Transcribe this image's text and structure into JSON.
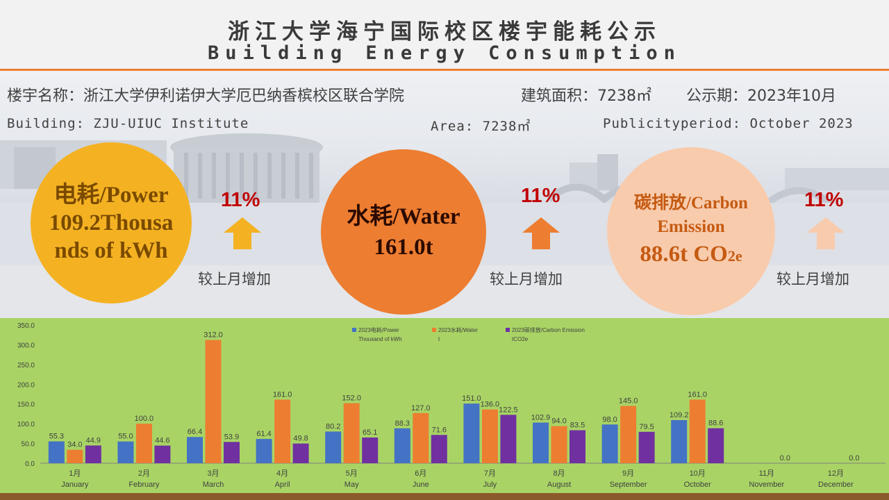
{
  "header": {
    "title_cn": "浙江大学海宁国际校区楼宇能耗公示",
    "title_en": "Building Energy Consumption"
  },
  "info": {
    "building_cn": "楼宇名称：浙江大学伊利诺伊大学厄巴纳香槟校区联合学院",
    "area_cn": "建筑面积：7238㎡",
    "period_cn": "公示期：2023年10月",
    "building_en": "Building: ZJU-UIUC Institute",
    "area_en": "Area: 7238㎡",
    "period_en": "Publicityperiod: October 2023"
  },
  "metrics": {
    "power": {
      "line1": "电耗/Power",
      "line2": "109.2Thousa",
      "line3": "nds of kWh",
      "change": "11%",
      "compare": "较上月增加",
      "color": "#f4b223"
    },
    "water": {
      "line1": "水耗/Water",
      "line2": "161.0t",
      "change": "11%",
      "compare": "较上月增加",
      "color": "#ed7d31"
    },
    "carbon": {
      "line1": "碳排放/Carbon",
      "line2": "Emission",
      "line3_main": "88.6t CO",
      "line3_sub": "2e",
      "change": "11%",
      "compare": "较上月增加",
      "color": "#f8cbad"
    }
  },
  "colors": {
    "accent": "#ed7d31",
    "chart_bg": "#a9d465",
    "up_arrow": "#f4b223"
  },
  "chart_data": {
    "type": "bar",
    "categories_cn": [
      "1月",
      "2月",
      "3月",
      "4月",
      "5月",
      "6月",
      "7月",
      "8月",
      "9月",
      "10月",
      "11月",
      "12月"
    ],
    "categories_en": [
      "January",
      "February",
      "March",
      "April",
      "May",
      "June",
      "July",
      "August",
      "September",
      "October",
      "November",
      "December"
    ],
    "ylim": [
      0,
      350
    ],
    "yticks": [
      "0.0",
      "50.0",
      "100.0",
      "150.0",
      "200.0",
      "250.0",
      "300.0",
      "350.0"
    ],
    "series": [
      {
        "name_l1": "2023电耗/Power",
        "name_l2": "Thousand of kWh",
        "color": "#4472c4",
        "values": [
          55.3,
          55.0,
          66.4,
          61.4,
          80.2,
          88.3,
          151.0,
          102.9,
          98.0,
          109.2,
          null,
          null
        ]
      },
      {
        "name_l1": "2023水耗/Water",
        "name_l2": "t",
        "color": "#ed7d31",
        "values": [
          34.0,
          100.0,
          312.0,
          161.0,
          152.0,
          127.0,
          136.0,
          94.0,
          145.0,
          161.0,
          null,
          null
        ]
      },
      {
        "name_l1": "2023碳排放/Carbon Emission",
        "name_l2": "tCO2e",
        "color": "#7030a0",
        "values": [
          44.9,
          44.6,
          53.9,
          49.8,
          65.1,
          71.6,
          122.5,
          83.5,
          79.5,
          88.6,
          0.0,
          0.0
        ]
      }
    ],
    "legend": "top-center",
    "grid": false
  }
}
